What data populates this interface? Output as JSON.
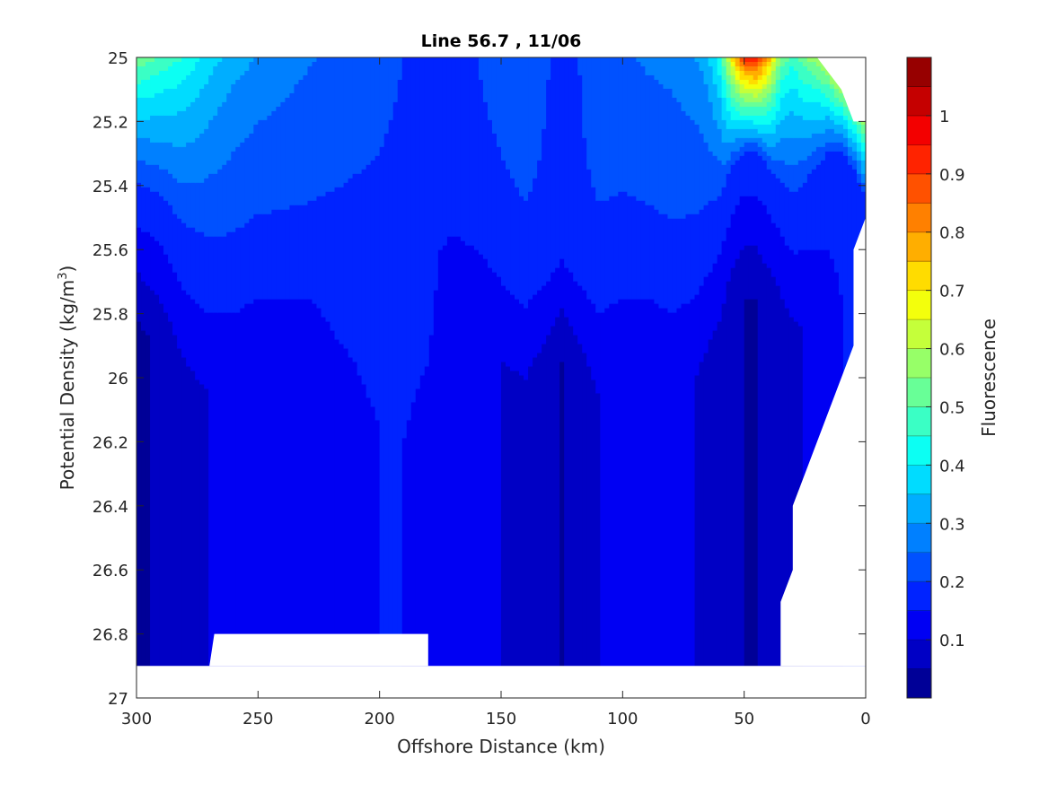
{
  "chart_data": {
    "type": "contourf",
    "title": "Line 56.7 , 11/06",
    "xlabel": "Offshore Distance (km)",
    "ylabel_main": "Potential Density (kg/m",
    "ylabel_sup": "3",
    "ylabel_close": ")",
    "colorbar_label": "Fluorescence",
    "xlim": [
      300,
      0
    ],
    "ylim": [
      25,
      27
    ],
    "y_reversed": true,
    "x_reversed": true,
    "x_ticks": [
      300,
      250,
      200,
      150,
      100,
      50,
      0
    ],
    "x_tick_labels": [
      "300",
      "250",
      "200",
      "150",
      "100",
      "50",
      "0"
    ],
    "y_ticks": [
      25,
      25.2,
      25.4,
      25.6,
      25.8,
      26,
      26.2,
      26.4,
      26.6,
      26.8,
      27
    ],
    "y_tick_labels": [
      "25",
      "25.2",
      "25.4",
      "25.6",
      "25.8",
      "26",
      "26.2",
      "26.4",
      "26.6",
      "26.8",
      "27"
    ],
    "colorbar": {
      "clim": [
        0,
        1.1
      ],
      "levels": [
        0,
        0.05,
        0.1,
        0.15,
        0.2,
        0.25,
        0.3,
        0.35,
        0.4,
        0.45,
        0.5,
        0.55,
        0.6,
        0.65,
        0.7,
        0.75,
        0.8,
        0.85,
        0.9,
        0.95,
        1,
        1.05,
        1.1
      ],
      "ticks": [
        0.1,
        0.2,
        0.3,
        0.4,
        0.5,
        0.6,
        0.7,
        0.8,
        0.9,
        1
      ],
      "tick_labels": [
        "0.1",
        "0.2",
        "0.3",
        "0.4",
        "0.5",
        "0.6",
        "0.7",
        "0.8",
        "0.9",
        "1"
      ],
      "colormap": "jet"
    },
    "surface_profiles": {
      "x_km": [
        300,
        290,
        280,
        270,
        260,
        250,
        240,
        230,
        220,
        210,
        200,
        190,
        180,
        175,
        170,
        160,
        150,
        140,
        130,
        125,
        120,
        110,
        100,
        90,
        80,
        70,
        65,
        60,
        55,
        50,
        45,
        40,
        35,
        30,
        25,
        20,
        15,
        10,
        5,
        0
      ],
      "upper_values": [
        0.55,
        0.5,
        0.45,
        0.38,
        0.33,
        0.3,
        0.28,
        0.26,
        0.24,
        0.22,
        0.21,
        0.2,
        0.19,
        0.185,
        0.18,
        0.2,
        0.22,
        0.24,
        0.2,
        0.185,
        0.19,
        0.24,
        0.24,
        0.26,
        0.27,
        0.3,
        0.34,
        0.45,
        0.72,
        0.95,
        0.98,
        0.8,
        0.55,
        0.48,
        0.55,
        0.6,
        0.7,
        0.85,
        0.95,
        1.02
      ],
      "upper_depth": [
        25.4,
        25.45,
        25.55,
        25.6,
        25.6,
        25.55,
        25.55,
        25.55,
        25.55,
        25.6,
        25.7,
        25.75,
        25.7,
        25.4,
        25.35,
        25.4,
        25.5,
        25.6,
        25.55,
        25.5,
        25.55,
        25.6,
        25.55,
        25.55,
        25.6,
        25.55,
        25.5,
        25.45,
        25.35,
        25.3,
        25.3,
        25.35,
        25.4,
        25.45,
        25.4,
        25.35,
        25.3,
        25.3,
        25.35,
        25.45
      ],
      "deep_min_values": [
        0.04,
        0.06,
        0.09,
        0.1,
        0.1,
        0.1,
        0.1,
        0.1,
        0.13,
        0.14,
        0.15,
        0.15,
        0.12,
        0.1,
        0.1,
        0.1,
        0.1,
        0.09,
        0.06,
        0.05,
        0.06,
        0.1,
        0.1,
        0.1,
        0.1,
        0.1,
        0.09,
        0.08,
        0.06,
        0.05,
        0.05,
        0.06,
        0.07,
        0.08,
        0.1,
        0.12,
        0.13,
        0.15,
        0.15,
        0.15
      ]
    },
    "data_extent": {
      "bottom_left": {
        "x_from": 300,
        "x_to": 270,
        "density": 26.9
      },
      "gap": {
        "x_from": 268,
        "x_to": 180,
        "density": 26.8
      },
      "bottom_right": {
        "x_from": 180,
        "x_to": 35,
        "density": 26.9
      },
      "nearshore_boundary": [
        {
          "x": 35,
          "density": 26.9
        },
        {
          "x": 35,
          "density": 26.7
        },
        {
          "x": 30,
          "density": 26.6
        },
        {
          "x": 30,
          "density": 26.4
        },
        {
          "x": 5,
          "density": 25.9
        },
        {
          "x": 5,
          "density": 25.6
        },
        {
          "x": 0,
          "density": 25.5
        },
        {
          "x": 0,
          "density": 25.2
        },
        {
          "x": 5,
          "density": 25.2
        },
        {
          "x": 10,
          "density": 25.1
        },
        {
          "x": 20,
          "density": 25.0
        }
      ]
    }
  }
}
